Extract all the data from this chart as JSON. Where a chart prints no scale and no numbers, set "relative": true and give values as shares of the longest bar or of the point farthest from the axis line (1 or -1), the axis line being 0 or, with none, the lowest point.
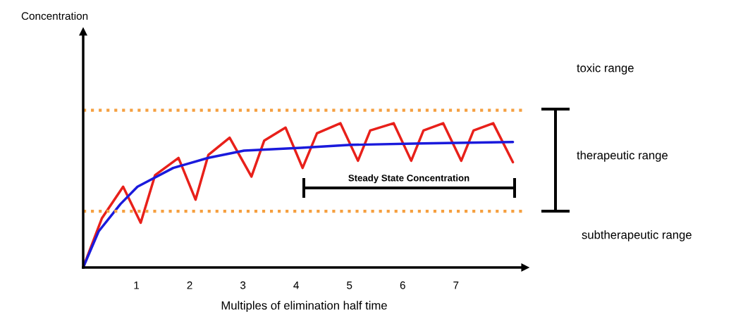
{
  "chart_data": {
    "type": "line",
    "relative": true,
    "xlabel": "Multiples of elimination half time",
    "xlim": [
      0,
      8.3
    ],
    "xticks": [
      1,
      2,
      3,
      4,
      5,
      6,
      7
    ],
    "tick_labels": "x",
    "grid": false,
    "marker": "none",
    "line_style": "solid",
    "series": [
      {
        "color": "#e8201a",
        "x": [
          0,
          0.35,
          0.75,
          1.08,
          1.35,
          1.79,
          2.11,
          2.35,
          2.75,
          3.16,
          3.4,
          3.8,
          4.12,
          4.39,
          4.83,
          5.16,
          5.39,
          5.83,
          6.16,
          6.39,
          6.76,
          7.1,
          7.33,
          7.7,
          8.07
        ],
        "values": [
          0,
          0.34,
          0.56,
          0.31,
          0.64,
          0.76,
          0.47,
          0.78,
          0.9,
          0.63,
          0.88,
          0.97,
          0.69,
          0.93,
          1.0,
          0.74,
          0.95,
          1.0,
          0.74,
          0.95,
          1.0,
          0.74,
          0.95,
          1.0,
          0.73
        ]
      },
      {
        "color": "#1a1adc",
        "x": [
          0,
          0.29,
          0.7,
          1.02,
          1.69,
          2.35,
          3.02,
          4.09,
          5.03,
          6.37,
          8.07
        ],
        "values": [
          0,
          0.25,
          0.44,
          0.56,
          0.69,
          0.76,
          0.81,
          0.83,
          0.85,
          0.86,
          0.87
        ]
      }
    ],
    "ref_lines": [
      {
        "axis": "y",
        "value": 1.09,
        "color": "#f5a040",
        "line_style": "dotted"
      },
      {
        "axis": "y",
        "value": 0.39,
        "color": "#f5a040",
        "line_style": "dotted"
      }
    ],
    "annotations": [
      "Concentration",
      "toxic range",
      "therapeutic range",
      "subtherapeutic range",
      "Steady State Concentration"
    ]
  }
}
